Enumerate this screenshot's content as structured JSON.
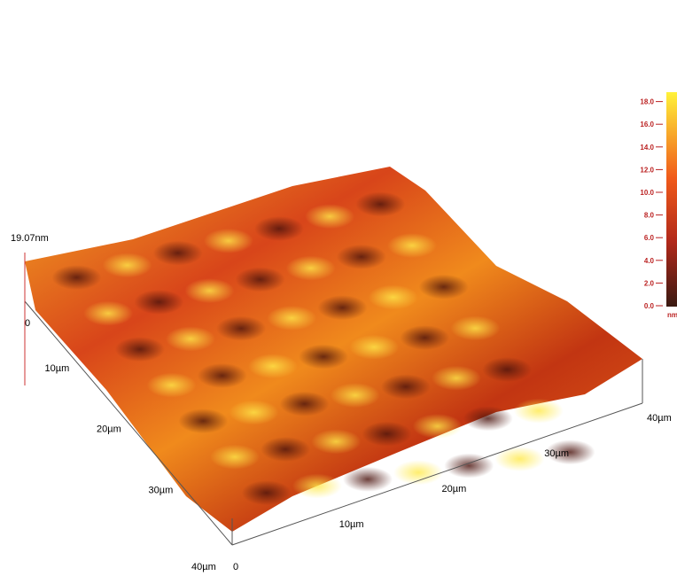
{
  "z_axis": {
    "max_label": "19.07nm",
    "origin_label": "0"
  },
  "left_axis": {
    "labels": [
      "10µm",
      "20µm",
      "30µm",
      "40µm"
    ]
  },
  "bottom_axis": {
    "origin_label": "0",
    "labels": [
      "10µm",
      "20µm",
      "30µm",
      "40µm"
    ]
  },
  "colorbar": {
    "ticks": [
      "0.0",
      "2.0",
      "4.0",
      "6.0",
      "8.0",
      "10.0",
      "12.0",
      "14.0",
      "16.0",
      "18.0"
    ],
    "unit": "nm"
  }
}
